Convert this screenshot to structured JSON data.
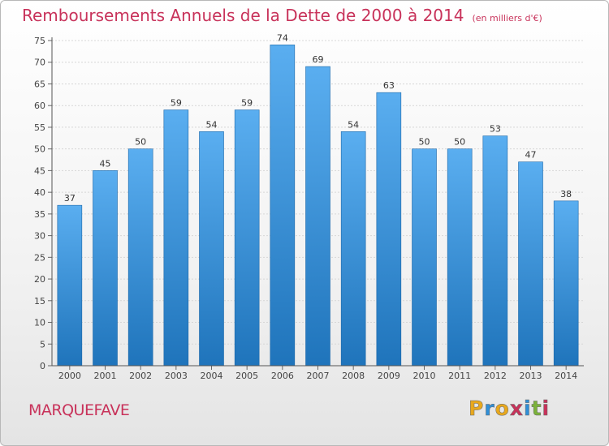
{
  "title": "Remboursements Annuels de la Dette de 2000 à 2014",
  "subtitle": "(en milliers d'€)",
  "town": "MARQUEFAVE",
  "logo": {
    "letters": [
      "P",
      "r",
      "o",
      "x",
      "i",
      "t",
      "i"
    ],
    "colors": [
      "#e8a81d",
      "#2f8fd8",
      "#e8a81d",
      "#c8325a",
      "#2f8fd8",
      "#7bb23a",
      "#c8325a"
    ]
  },
  "colors": {
    "title": "#c8325a",
    "bar_top": "#5aaef0",
    "bar_bottom": "#1f74bb"
  },
  "chart_data": {
    "type": "bar",
    "categories": [
      "2000",
      "2001",
      "2002",
      "2003",
      "2004",
      "2005",
      "2006",
      "2007",
      "2008",
      "2009",
      "2010",
      "2011",
      "2012",
      "2013",
      "2014"
    ],
    "values": [
      37,
      45,
      50,
      59,
      54,
      59,
      74,
      69,
      54,
      63,
      50,
      50,
      53,
      47,
      38
    ],
    "ylim": [
      0,
      75
    ],
    "yticks": [
      0,
      5,
      10,
      15,
      20,
      25,
      30,
      35,
      40,
      45,
      50,
      55,
      60,
      65,
      70,
      75
    ],
    "grid": true,
    "xlabel": "",
    "ylabel": ""
  }
}
